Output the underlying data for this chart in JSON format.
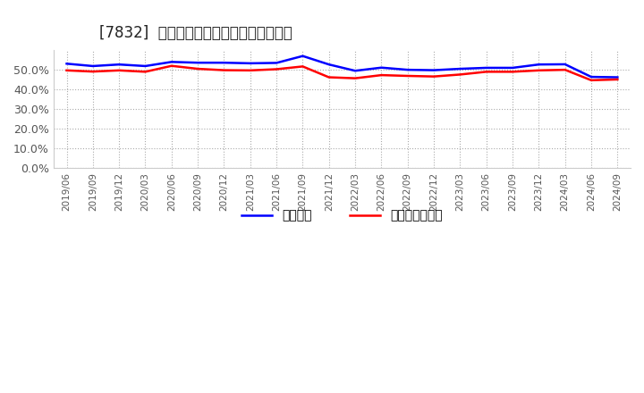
{
  "title": "[7832]  固定比率、固定長期適合率の推移",
  "blue_label": "固定比率",
  "red_label": "固定長期適合率",
  "blue_color": "#0000ff",
  "red_color": "#ff0000",
  "background_color": "#ffffff",
  "ylim": [
    0.0,
    0.6
  ],
  "yticks": [
    0.0,
    0.1,
    0.2,
    0.3,
    0.4,
    0.5
  ],
  "xtick_labels": [
    "2019/06",
    "2019/09",
    "2019/12",
    "2020/03",
    "2020/06",
    "2020/09",
    "2020/12",
    "2021/03",
    "2021/06",
    "2021/09",
    "2021/12",
    "2022/03",
    "2022/06",
    "2022/09",
    "2022/12",
    "2023/03",
    "2023/06",
    "2023/09",
    "2023/12",
    "2024/03",
    "2024/06",
    "2024/09"
  ],
  "blue_values": [
    0.531,
    0.519,
    0.527,
    0.519,
    0.54,
    0.536,
    0.536,
    0.533,
    0.535,
    0.57,
    0.527,
    0.495,
    0.511,
    0.5,
    0.498,
    0.505,
    0.51,
    0.51,
    0.527,
    0.528,
    0.464,
    0.462
  ],
  "red_values": [
    0.497,
    0.491,
    0.497,
    0.49,
    0.52,
    0.505,
    0.498,
    0.497,
    0.503,
    0.517,
    0.462,
    0.457,
    0.473,
    0.469,
    0.466,
    0.476,
    0.49,
    0.49,
    0.497,
    0.5,
    0.447,
    0.451
  ]
}
